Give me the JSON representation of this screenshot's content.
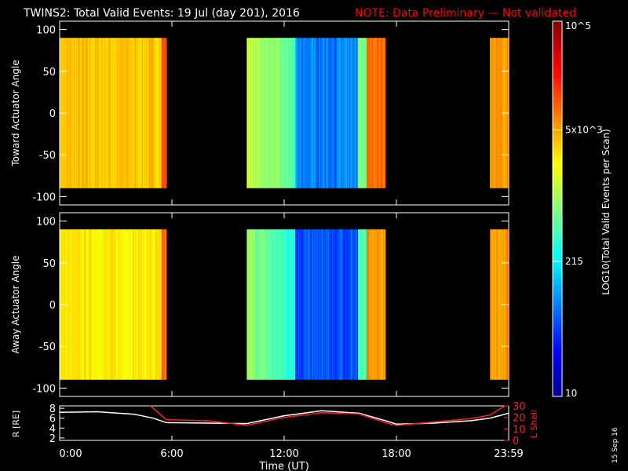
{
  "header": {
    "title": "TWINS2: Total Valid Events: 19 Jul (day 201), 2016",
    "note": "NOTE: Data Preliminary — Not validated",
    "note_color": "#ff0000"
  },
  "stamp": "15 Sep 16",
  "chart_data": [
    {
      "type": "heatmap",
      "ylabel": "Toward Actuator Angle",
      "ylim": [
        -110,
        110
      ],
      "yticks": [
        "100",
        "50",
        "0",
        "-50",
        "-100"
      ],
      "angle_range": [
        -90,
        90
      ],
      "x_hours": [
        0,
        24
      ],
      "segments": [
        {
          "start": 0.0,
          "end": 5.7,
          "level": 0.68
        },
        {
          "start": 10.0,
          "end": 17.4,
          "level": 0.55
        },
        {
          "start": 23.0,
          "end": 24.0,
          "level": 0.72
        }
      ]
    },
    {
      "type": "heatmap",
      "ylabel": "Away Actuator Angle",
      "ylim": [
        -110,
        110
      ],
      "yticks": [
        "100",
        "50",
        "0",
        "-50",
        "-100"
      ],
      "angle_range": [
        -90,
        90
      ],
      "x_hours": [
        0,
        24
      ],
      "segments": [
        {
          "start": 0.0,
          "end": 5.7,
          "level": 0.64
        },
        {
          "start": 10.0,
          "end": 17.4,
          "level": 0.5
        },
        {
          "start": 23.0,
          "end": 24.0,
          "level": 0.72
        }
      ]
    },
    {
      "type": "line",
      "ylabel": "R [RE]",
      "ylabel_right": "L Shell",
      "ylim": [
        1.5,
        8.5
      ],
      "ylim_right": [
        0,
        30
      ],
      "yticks": [
        "8",
        "6",
        "4",
        "2"
      ],
      "yticks_right": [
        "30",
        "20",
        "10",
        "0"
      ],
      "xlabel": "Time (UT)",
      "xticks": [
        "0:00",
        "6:00",
        "12:00",
        "18:00",
        "23:59"
      ],
      "xtick_hours": [
        0,
        6,
        12,
        18,
        24
      ],
      "series": [
        {
          "color": "#ffffff",
          "x": [
            0,
            2,
            4,
            5,
            5.7,
            8,
            10,
            12,
            14,
            16,
            17.5,
            18,
            20,
            22,
            23,
            24
          ],
          "y": [
            7.2,
            7.3,
            6.8,
            6.0,
            5.1,
            5.0,
            4.9,
            6.5,
            7.5,
            7.0,
            5.4,
            4.8,
            5.0,
            5.5,
            6.0,
            7.0
          ]
        },
        {
          "color": "#ff2020",
          "axis": "right",
          "x": [
            4.5,
            5.7,
            8,
            10,
            12,
            14,
            16,
            17.5,
            18,
            20,
            22,
            23,
            24
          ],
          "y": [
            35,
            18,
            17,
            13,
            20,
            24,
            23,
            15,
            13,
            16,
            19,
            22,
            32
          ]
        }
      ]
    }
  ],
  "colorbar": {
    "label": "LOG10(Total Valid Events per Scan)",
    "tick_labels": [
      "10^5",
      "5x10^3",
      "215",
      "10"
    ],
    "tick_fractions": [
      1.0,
      0.71,
      0.36,
      0.0
    ]
  }
}
